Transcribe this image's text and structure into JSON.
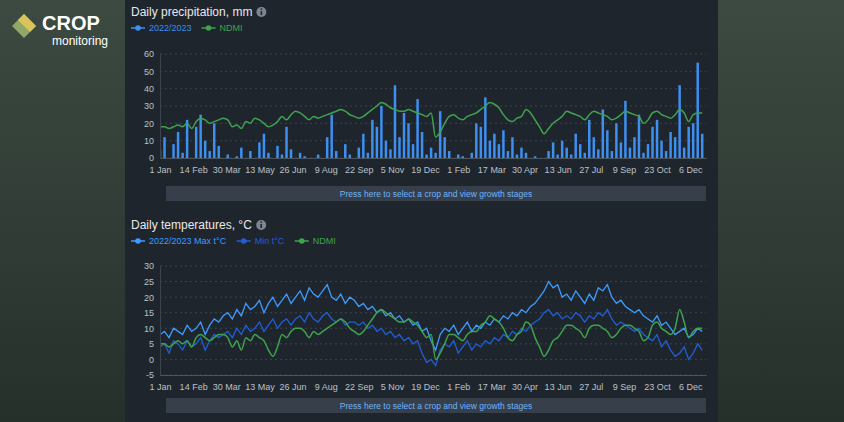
{
  "page": {
    "logo": "CROP",
    "logo_subtitle": "monitoring"
  },
  "chart_data": [
    {
      "type": "bar",
      "title": "Daily precipitation, mm",
      "annotation": "Press here to select a crop and view growth stages",
      "legend": "top-left",
      "grid": true,
      "x": [
        0,
        6,
        12,
        18,
        24,
        30,
        36,
        42,
        48,
        54,
        60,
        66,
        72,
        78,
        84,
        90,
        96,
        102,
        108,
        114,
        120,
        126,
        132,
        138,
        144,
        150,
        156,
        162,
        168,
        174,
        180,
        186,
        192,
        198,
        204,
        210,
        216,
        222,
        228,
        234,
        240,
        246,
        252,
        258,
        264,
        270,
        276,
        282,
        288,
        294,
        300,
        306,
        312,
        318,
        324,
        330,
        336,
        342,
        348,
        354,
        360,
        366,
        372,
        378,
        384,
        390,
        396,
        402,
        408,
        414,
        420,
        426,
        432,
        438,
        444,
        450,
        456,
        462,
        468,
        474,
        480,
        486,
        492,
        498,
        504,
        510,
        516,
        522,
        528,
        534,
        540,
        546,
        552,
        558,
        564,
        570,
        576,
        582,
        588,
        594,
        600,
        606,
        612,
        618,
        624,
        630,
        636,
        642,
        648,
        654,
        660,
        666,
        672,
        678,
        684,
        690,
        696,
        702,
        708,
        714,
        720
      ],
      "xlim": [
        0,
        725
      ],
      "xticks": [
        {
          "value": 0,
          "label": "1 Jan"
        },
        {
          "value": 44,
          "label": "14 Feb"
        },
        {
          "value": 88,
          "label": "30 Mar"
        },
        {
          "value": 132,
          "label": "13 May"
        },
        {
          "value": 176,
          "label": "26 Jun"
        },
        {
          "value": 220,
          "label": "9 Aug"
        },
        {
          "value": 264,
          "label": "22 Sep"
        },
        {
          "value": 308,
          "label": "5 Nov"
        },
        {
          "value": 352,
          "label": "19 Dec"
        },
        {
          "value": 396,
          "label": "1 Feb"
        },
        {
          "value": 440,
          "label": "17 Mar"
        },
        {
          "value": 484,
          "label": "30 Apr"
        },
        {
          "value": 528,
          "label": "13 Jun"
        },
        {
          "value": 572,
          "label": "27 Jul"
        },
        {
          "value": 616,
          "label": "9 Sep"
        },
        {
          "value": 660,
          "label": "23 Oct"
        },
        {
          "value": 704,
          "label": "6 Dec"
        }
      ],
      "ylim": [
        0,
        60
      ],
      "yticks": [
        0,
        10,
        20,
        30,
        40,
        50,
        60
      ],
      "series": [
        {
          "name": "2022/2023",
          "type": "bar",
          "color": "#3d8ff0",
          "values": [
            5,
            12,
            0,
            8,
            15,
            3,
            22,
            0,
            18,
            25,
            10,
            4,
            20,
            7,
            0,
            2,
            0,
            1,
            6,
            0,
            4,
            0,
            9,
            14,
            3,
            0,
            7,
            2,
            18,
            5,
            0,
            3,
            1,
            0,
            0,
            2,
            0,
            12,
            25,
            4,
            0,
            8,
            2,
            0,
            6,
            14,
            3,
            22,
            18,
            30,
            10,
            5,
            42,
            12,
            26,
            20,
            8,
            34,
            15,
            2,
            6,
            3,
            27,
            12,
            4,
            0,
            2,
            1,
            0,
            3,
            20,
            18,
            35,
            10,
            14,
            8,
            16,
            4,
            12,
            2,
            6,
            3,
            0,
            1,
            0,
            0,
            4,
            9,
            2,
            10,
            6,
            2,
            14,
            8,
            3,
            22,
            12,
            5,
            28,
            16,
            4,
            20,
            9,
            33,
            6,
            12,
            25,
            3,
            8,
            18,
            22,
            10,
            4,
            15,
            12,
            42,
            6,
            18,
            20,
            55,
            14
          ]
        },
        {
          "name": "NDMI",
          "type": "line",
          "color": "#3fa34d",
          "values": [
            18,
            18,
            17,
            18,
            19,
            18,
            20,
            17,
            21,
            23,
            22,
            20,
            21,
            22,
            23,
            22,
            18,
            19,
            17,
            21,
            20,
            23,
            22,
            20,
            18,
            19,
            21,
            24,
            22,
            25,
            27,
            26,
            24,
            22,
            24,
            23,
            24,
            25,
            26,
            27,
            28,
            27,
            25,
            24,
            23,
            24,
            26,
            28,
            30,
            32,
            31,
            29,
            28,
            27,
            27,
            28,
            27,
            26,
            25,
            24,
            26,
            12,
            15,
            20,
            24,
            25,
            23,
            22,
            24,
            25,
            26,
            28,
            30,
            32,
            31,
            29,
            25,
            22,
            21,
            23,
            24,
            28,
            26,
            22,
            18,
            14,
            17,
            20,
            22,
            24,
            27,
            26,
            25,
            24,
            22,
            25,
            27,
            26,
            25,
            24,
            22,
            23,
            25,
            27,
            26,
            25,
            24,
            20,
            22,
            26,
            27,
            25,
            24,
            23,
            25,
            28,
            26,
            21,
            25,
            26,
            26
          ]
        }
      ]
    },
    {
      "type": "line",
      "title": "Daily temperatures, °C",
      "annotation": "Press here to select a crop and view growth stages",
      "legend": "top-left",
      "grid": true,
      "x": [
        0,
        6,
        12,
        18,
        24,
        30,
        36,
        42,
        48,
        54,
        60,
        66,
        72,
        78,
        84,
        90,
        96,
        102,
        108,
        114,
        120,
        126,
        132,
        138,
        144,
        150,
        156,
        162,
        168,
        174,
        180,
        186,
        192,
        198,
        204,
        210,
        216,
        222,
        228,
        234,
        240,
        246,
        252,
        258,
        264,
        270,
        276,
        282,
        288,
        294,
        300,
        306,
        312,
        318,
        324,
        330,
        336,
        342,
        348,
        354,
        360,
        366,
        372,
        378,
        384,
        390,
        396,
        402,
        408,
        414,
        420,
        426,
        432,
        438,
        444,
        450,
        456,
        462,
        468,
        474,
        480,
        486,
        492,
        498,
        504,
        510,
        516,
        522,
        528,
        534,
        540,
        546,
        552,
        558,
        564,
        570,
        576,
        582,
        588,
        594,
        600,
        606,
        612,
        618,
        624,
        630,
        636,
        642,
        648,
        654,
        660,
        666,
        672,
        678,
        684,
        690,
        696,
        702,
        708,
        714,
        720
      ],
      "xlim": [
        0,
        725
      ],
      "xticks": [
        {
          "value": 0,
          "label": "1 Jan"
        },
        {
          "value": 44,
          "label": "14 Feb"
        },
        {
          "value": 88,
          "label": "30 Mar"
        },
        {
          "value": 132,
          "label": "13 May"
        },
        {
          "value": 176,
          "label": "26 Jun"
        },
        {
          "value": 220,
          "label": "9 Aug"
        },
        {
          "value": 264,
          "label": "22 Sep"
        },
        {
          "value": 308,
          "label": "5 Nov"
        },
        {
          "value": 352,
          "label": "19 Dec"
        },
        {
          "value": 396,
          "label": "1 Feb"
        },
        {
          "value": 440,
          "label": "17 Mar"
        },
        {
          "value": 484,
          "label": "30 Apr"
        },
        {
          "value": 528,
          "label": "13 Jun"
        },
        {
          "value": 572,
          "label": "27 Jul"
        },
        {
          "value": 616,
          "label": "9 Sep"
        },
        {
          "value": 660,
          "label": "23 Oct"
        },
        {
          "value": 704,
          "label": "6 Dec"
        }
      ],
      "ylim": [
        -5,
        30
      ],
      "yticks": [
        -5,
        0,
        5,
        10,
        15,
        20,
        25,
        30
      ],
      "series": [
        {
          "name": "2022/2023 Max t°C",
          "type": "line",
          "color": "#3d9cff",
          "values": [
            8,
            9,
            7,
            10,
            9,
            8,
            11,
            9,
            10,
            12,
            8,
            11,
            13,
            12,
            14,
            15,
            13,
            16,
            14,
            18,
            16,
            17,
            19,
            15,
            18,
            20,
            17,
            19,
            21,
            18,
            20,
            22,
            19,
            23,
            21,
            20,
            22,
            24,
            20,
            19,
            21,
            18,
            20,
            19,
            17,
            18,
            16,
            17,
            15,
            16,
            14,
            15,
            13,
            14,
            12,
            13,
            11,
            12,
            9,
            10,
            6,
            3,
            8,
            10,
            9,
            11,
            8,
            10,
            12,
            9,
            11,
            10,
            12,
            11,
            13,
            12,
            14,
            13,
            15,
            14,
            16,
            15,
            17,
            18,
            20,
            22,
            25,
            23,
            24,
            20,
            21,
            19,
            22,
            20,
            18,
            21,
            19,
            23,
            22,
            24,
            20,
            18,
            19,
            17,
            16,
            15,
            16,
            14,
            13,
            12,
            14,
            11,
            12,
            10,
            8,
            9,
            10,
            7,
            8,
            10,
            9
          ]
        },
        {
          "name": "Min t°C",
          "type": "line",
          "color": "#1f5fd6",
          "values": [
            4,
            5,
            2,
            6,
            5,
            3,
            6,
            4,
            5,
            7,
            3,
            6,
            8,
            7,
            8,
            9,
            7,
            10,
            8,
            11,
            9,
            10,
            12,
            9,
            11,
            13,
            10,
            12,
            13,
            11,
            13,
            14,
            12,
            15,
            13,
            12,
            14,
            15,
            13,
            12,
            13,
            11,
            12,
            12,
            11,
            12,
            10,
            11,
            9,
            10,
            8,
            9,
            7,
            8,
            6,
            7,
            5,
            6,
            2,
            -1,
            0,
            -2,
            3,
            5,
            4,
            6,
            2,
            4,
            6,
            3,
            5,
            4,
            6,
            5,
            7,
            6,
            8,
            7,
            9,
            8,
            10,
            9,
            11,
            12,
            13,
            15,
            16,
            14,
            15,
            13,
            14,
            13,
            15,
            14,
            12,
            14,
            13,
            15,
            14,
            16,
            13,
            11,
            12,
            11,
            10,
            9,
            10,
            8,
            7,
            6,
            8,
            4,
            6,
            3,
            1,
            2,
            4,
            0,
            2,
            5,
            3
          ]
        },
        {
          "name": "NDMI",
          "type": "line",
          "color": "#3fa34d",
          "values": [
            5,
            5,
            4,
            5,
            6,
            5,
            6,
            4,
            7,
            8,
            7,
            6,
            7,
            8,
            8,
            7,
            4,
            6,
            3,
            7,
            6,
            8,
            7,
            6,
            3,
            1,
            4,
            8,
            7,
            9,
            10,
            10,
            9,
            7,
            9,
            8,
            9,
            10,
            11,
            12,
            13,
            12,
            10,
            9,
            8,
            9,
            11,
            13,
            15,
            16,
            15,
            14,
            13,
            12,
            12,
            13,
            12,
            11,
            9,
            7,
            8,
            0,
            2,
            5,
            8,
            8,
            7,
            6,
            8,
            9,
            9,
            11,
            12,
            14,
            13,
            12,
            10,
            7,
            6,
            8,
            9,
            12,
            11,
            7,
            4,
            1,
            3,
            6,
            7,
            9,
            11,
            11,
            10,
            9,
            7,
            10,
            11,
            11,
            10,
            9,
            7,
            8,
            10,
            11,
            11,
            10,
            9,
            6,
            7,
            11,
            12,
            10,
            9,
            8,
            10,
            16,
            12,
            7,
            9,
            10,
            10
          ]
        }
      ]
    }
  ]
}
